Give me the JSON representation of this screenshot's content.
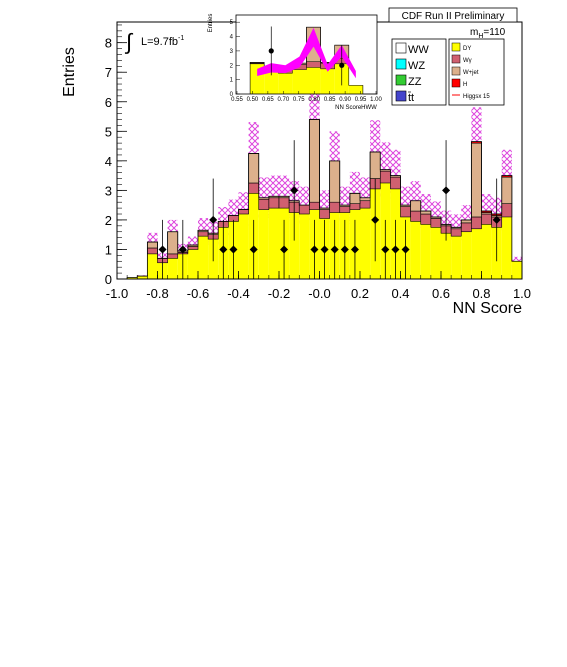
{
  "chart_data": [
    {
      "type": "bar",
      "stacked": true,
      "histogram": true,
      "title": "CDF Run II Preliminary",
      "xlabel": "NN Score",
      "ylabel": "Entries",
      "xlim": [
        -1.0,
        1.0
      ],
      "ylim": [
        0,
        8.7
      ],
      "xticks": [
        "-1.0",
        "-0.8",
        "-0.6",
        "-0.4",
        "-0.2",
        "-0.0",
        "0.2",
        "0.4",
        "0.6",
        "0.8",
        "1.0"
      ],
      "yticks": [
        "0",
        "1",
        "2",
        "3",
        "4",
        "5",
        "6",
        "7",
        "8"
      ],
      "luminosity_label": "L=9.7fb",
      "luminosity_sup": "-1",
      "integral_symbol": "∫",
      "mass_label": "m",
      "mass_sub": "H",
      "mass_value": "=110",
      "bin_edges": [
        -1.0,
        -0.95,
        -0.9,
        -0.85,
        -0.8,
        -0.75,
        -0.7,
        -0.65,
        -0.6,
        -0.55,
        -0.5,
        -0.45,
        -0.4,
        -0.35,
        -0.3,
        -0.25,
        -0.2,
        -0.15,
        -0.1,
        -0.05,
        0.0,
        0.05,
        0.1,
        0.15,
        0.2,
        0.25,
        0.3,
        0.35,
        0.4,
        0.45,
        0.5,
        0.55,
        0.6,
        0.65,
        0.7,
        0.75,
        0.8,
        0.85,
        0.9,
        0.95,
        1.0
      ],
      "series": [
        {
          "name": "DY",
          "color": "#ffff00",
          "values": [
            0,
            0.05,
            0.1,
            0.85,
            0.55,
            0.7,
            0.85,
            1.0,
            1.45,
            1.35,
            1.75,
            1.95,
            2.2,
            2.9,
            2.35,
            2.4,
            2.4,
            2.25,
            2.2,
            2.35,
            2.05,
            2.25,
            2.25,
            2.35,
            2.4,
            3.05,
            3.25,
            3.05,
            2.1,
            1.95,
            1.85,
            1.75,
            1.55,
            1.45,
            1.6,
            1.7,
            1.85,
            1.75,
            2.1,
            0.6
          ]
        },
        {
          "name": "Wγ",
          "color": "#d06070",
          "values": [
            0,
            0,
            0,
            0.2,
            0.15,
            0.15,
            0.05,
            0.1,
            0.15,
            0.15,
            0.2,
            0.2,
            0.15,
            0.35,
            0.35,
            0.35,
            0.35,
            0.35,
            0.3,
            0.25,
            0.3,
            0.35,
            0.2,
            0.2,
            0.25,
            0.35,
            0.4,
            0.4,
            0.35,
            0.35,
            0.35,
            0.3,
            0.25,
            0.25,
            0.3,
            0.4,
            0.35,
            0.35,
            0.45,
            0
          ]
        },
        {
          "name": "W+jet",
          "color": "#dcb08c",
          "values": [
            0,
            0,
            0,
            0.2,
            0,
            0.75,
            0.05,
            0.05,
            0.05,
            0.05,
            0,
            0,
            0,
            1.0,
            0.05,
            0.05,
            0.05,
            0.05,
            0,
            2.8,
            0.05,
            1.4,
            0.05,
            0.35,
            0.1,
            0.9,
            0.05,
            0.05,
            0.05,
            0.35,
            0.1,
            0.05,
            0.05,
            0.05,
            0.1,
            2.5,
            0.05,
            0.05,
            0.9,
            0
          ]
        },
        {
          "name": "Higgsx 15",
          "color": "#ff0000",
          "values": [
            0,
            0,
            0,
            0,
            0,
            0,
            0,
            0,
            0,
            0,
            0,
            0,
            0,
            0,
            0,
            0,
            0,
            0,
            0,
            0,
            0,
            0,
            0,
            0,
            0,
            0,
            0,
            0,
            0,
            0,
            0,
            0,
            0,
            0,
            0,
            0.05,
            0.05,
            0.05,
            0.05,
            0
          ]
        }
      ],
      "uncertainty_band": {
        "color": "#dd44dd",
        "rel": 0.25
      },
      "data": {
        "x": [
          -0.775,
          -0.725,
          -0.675,
          -0.525,
          -0.475,
          -0.425,
          -0.325,
          -0.175,
          -0.125,
          -0.025,
          0.025,
          0.075,
          0.125,
          0.175,
          0.275,
          0.325,
          0.375,
          0.425,
          0.625,
          0.875
        ],
        "y": [
          1,
          0,
          1,
          2,
          1,
          1,
          1,
          1,
          3,
          1,
          1,
          1,
          1,
          1,
          2,
          1,
          1,
          1,
          3,
          2
        ],
        "err": [
          1.0,
          0,
          1.0,
          1.4,
          1.0,
          1.0,
          1.0,
          1.0,
          1.7,
          1.0,
          1.0,
          1.0,
          1.0,
          1.0,
          1.4,
          1.0,
          1.0,
          1.0,
          1.7,
          1.4
        ]
      }
    },
    {
      "type": "bar",
      "inset": true,
      "xlabel": "NN ScoreHWW",
      "ylabel": "Entries",
      "xlim": [
        0.5,
        1.0
      ],
      "ylim": [
        0,
        5.5
      ],
      "xticks": [
        "0.55",
        "0.50",
        "0.65",
        "0.70",
        "0.75",
        "0.80",
        "0.85",
        "0.90",
        "0.95",
        "1.00"
      ],
      "yticks": [
        "0",
        "1",
        "2",
        "3",
        "4",
        "5"
      ],
      "bin_edges": [
        0.55,
        0.6,
        0.65,
        0.7,
        0.75,
        0.8,
        0.85,
        0.9,
        0.95,
        1.0
      ],
      "series": [
        {
          "name": "DY",
          "color": "#ffff00",
          "values": [
            2.1,
            1.55,
            1.45,
            1.7,
            1.85,
            1.75,
            2.1,
            0.6,
            0
          ]
        },
        {
          "name": "Wγ",
          "color": "#d06070",
          "values": [
            0.05,
            0.3,
            0.35,
            0.35,
            0.4,
            0.4,
            0.4,
            0,
            0
          ]
        },
        {
          "name": "W+jet",
          "color": "#dcb08c",
          "values": [
            0.05,
            0.05,
            0.1,
            0.1,
            2.4,
            0.05,
            0.9,
            0,
            0
          ]
        }
      ],
      "band": {
        "color": "#ff00ff",
        "lo": [
          1.25,
          1.5,
          1.45,
          1.85,
          3.3,
          1.55,
          2.6,
          1.1
        ],
        "hi": [
          1.75,
          2.15,
          2.0,
          2.6,
          4.6,
          2.05,
          3.4,
          1.6
        ]
      },
      "data": {
        "x": [
          0.625,
          0.875
        ],
        "y": [
          3,
          2
        ],
        "err": [
          1.7,
          1.4
        ]
      }
    }
  ],
  "legend_left": [
    {
      "label": "WW",
      "color": "#ffffff"
    },
    {
      "label": "WZ",
      "color": "#00ffff"
    },
    {
      "label": "ZZ",
      "color": "#33cc33"
    },
    {
      "label": "tt",
      "color": "#4444cc",
      "overbar": "t"
    }
  ],
  "legend_right": [
    {
      "label": "DY",
      "color": "#ffff00",
      "kind": "box"
    },
    {
      "label": "Wγ",
      "color": "#d06070",
      "kind": "box"
    },
    {
      "label": "W+jet",
      "color": "#dcb08c",
      "kind": "box"
    },
    {
      "label": "H",
      "color": "#ff0000",
      "kind": "box"
    },
    {
      "label": "Higgsx 15",
      "color": "#ff0000",
      "kind": "line"
    }
  ]
}
